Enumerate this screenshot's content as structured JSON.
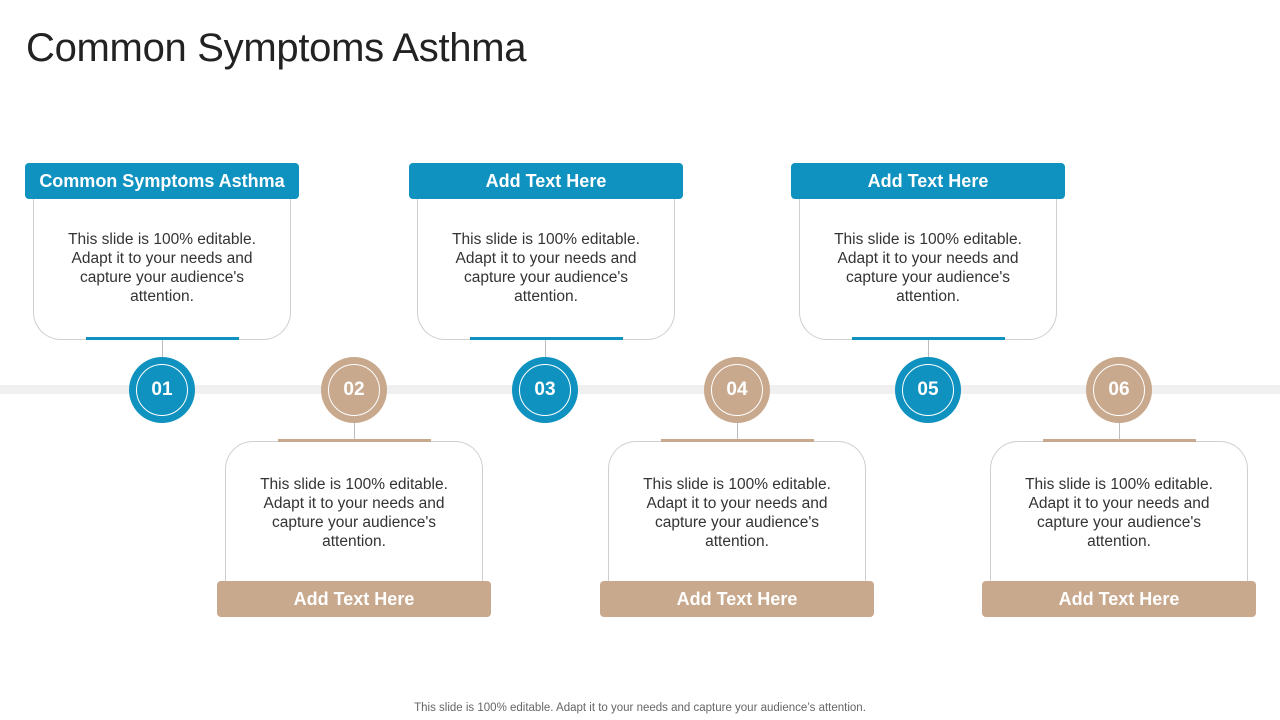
{
  "title": "Common Symptoms Asthma",
  "steps": [
    {
      "number": "01",
      "label": "Common Symptoms Asthma",
      "text": "This slide is 100% editable. Adapt it to your needs and capture your audience's attention.",
      "color": "#1092c0"
    },
    {
      "number": "02",
      "label": "Add Text Here",
      "text": "This slide is 100% editable. Adapt it to your needs and capture your audience's attention.",
      "color": "#c8a98e"
    },
    {
      "number": "03",
      "label": "Add Text Here",
      "text": "This slide is 100% editable. Adapt it to your needs and capture your audience's attention.",
      "color": "#1092c0"
    },
    {
      "number": "04",
      "label": "Add Text Here",
      "text": "This slide is 100% editable. Adapt it to your needs and capture your audience's attention.",
      "color": "#c8a98e"
    },
    {
      "number": "05",
      "label": "Add Text Here",
      "text": "This slide is 100% editable. Adapt it to your needs and capture your audience's attention.",
      "color": "#1092c0"
    },
    {
      "number": "06",
      "label": "Add Text Here",
      "text": "This slide is 100% editable. Adapt it to your needs and capture your audience's attention.",
      "color": "#c8a98e"
    }
  ],
  "footer": "This slide is 100% editable. Adapt it to your needs and capture your audience’s attention."
}
